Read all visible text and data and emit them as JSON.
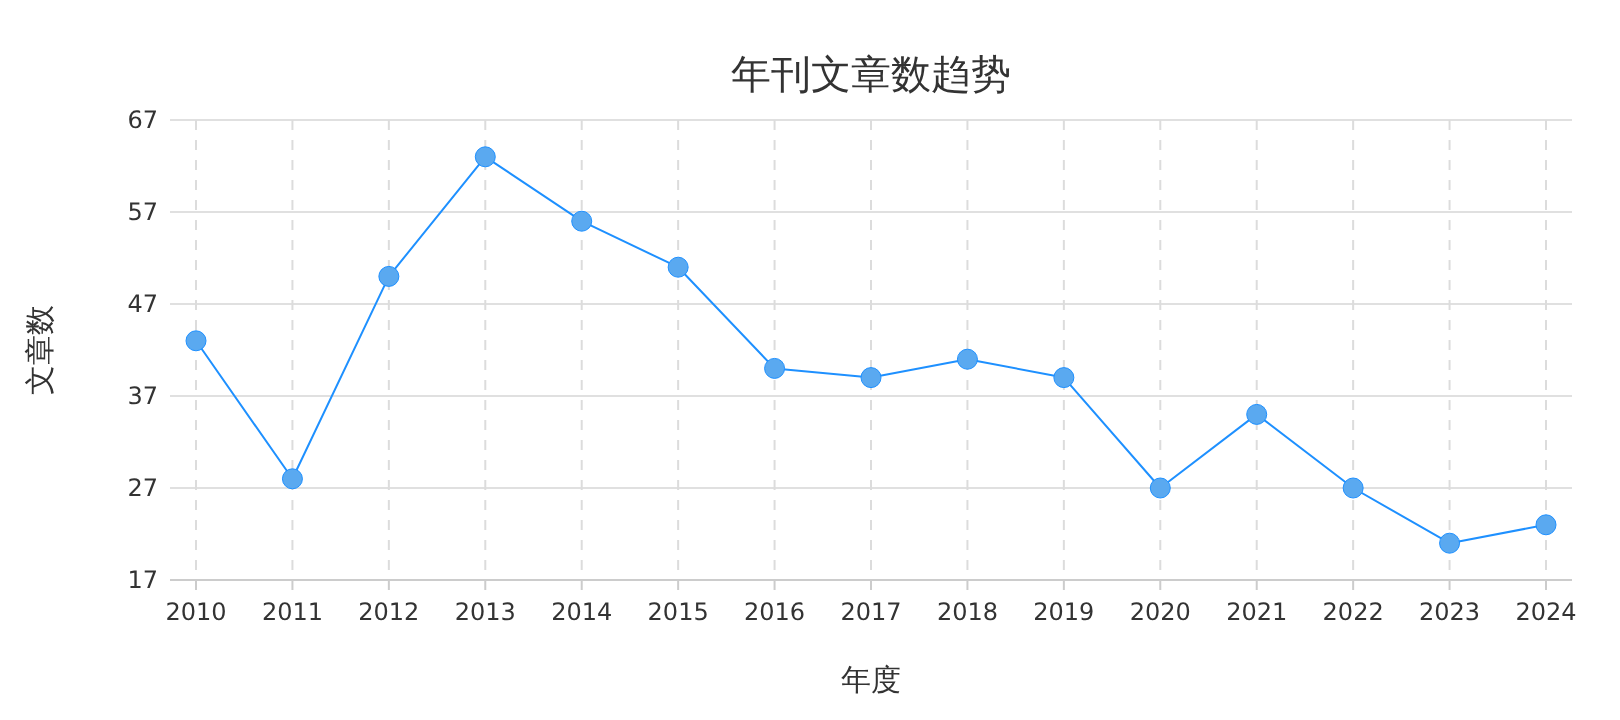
{
  "chart_data": {
    "type": "line",
    "title": "年刊文章数趋势",
    "xlabel": "年度",
    "ylabel": "文章数",
    "categories": [
      "2010",
      "2011",
      "2012",
      "2013",
      "2014",
      "2015",
      "2016",
      "2017",
      "2018",
      "2019",
      "2020",
      "2021",
      "2022",
      "2023",
      "2024"
    ],
    "series": [
      {
        "color": "#1e90ff",
        "values": [
          43,
          28,
          50,
          63,
          56,
          51,
          40,
          39,
          41,
          39,
          27,
          35,
          27,
          21,
          23
        ]
      }
    ],
    "ylim": [
      17,
      67
    ],
    "yticks": [
      17,
      27,
      37,
      47,
      57,
      67
    ],
    "grid": true,
    "marker": "circle",
    "line_style": "solid"
  }
}
